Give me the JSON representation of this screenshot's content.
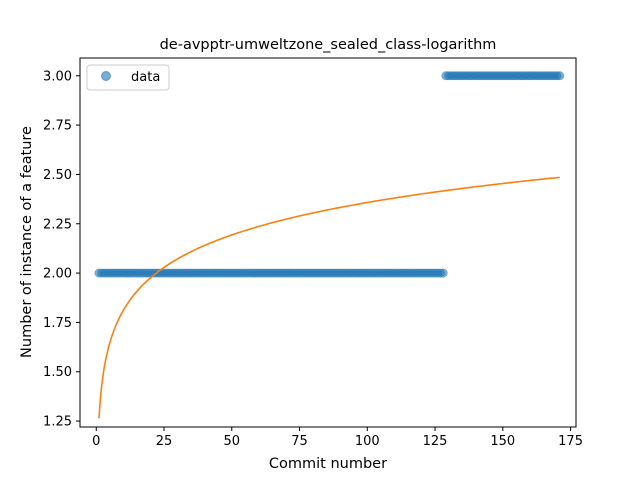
{
  "chart_data": {
    "type": "scatter",
    "title": "de-avpptr-umweltzone_sealed_class-logarithm",
    "xlabel": "Commit number",
    "ylabel": "Number of instance of a feature",
    "xlim": [
      -6,
      177
    ],
    "ylim": [
      1.22,
      3.09
    ],
    "x_ticks": [
      0,
      25,
      50,
      75,
      100,
      125,
      150,
      175
    ],
    "x_tick_labels": [
      "0",
      "25",
      "50",
      "75",
      "100",
      "125",
      "150",
      "175"
    ],
    "y_ticks": [
      1.25,
      1.5,
      1.75,
      2.0,
      2.25,
      2.5,
      2.75,
      3.0
    ],
    "y_tick_labels": [
      "1.25",
      "1.50",
      "1.75",
      "2.00",
      "2.25",
      "2.50",
      "2.75",
      "3.00"
    ],
    "grid": false,
    "legend": {
      "position": "top-left",
      "entries": [
        "data"
      ]
    },
    "series": [
      {
        "name": "data",
        "kind": "scatter",
        "color": "#1f77b4",
        "segments": [
          {
            "x_start": 1,
            "x_end": 128,
            "y": 2.0
          },
          {
            "x_start": 129,
            "x_end": 171,
            "y": 3.0
          }
        ]
      },
      {
        "kind": "line",
        "color": "#ff7f0e",
        "model": "logarithmic",
        "intercept": 1.265,
        "slope": 0.2373,
        "x_start": 1,
        "x_end": 171
      }
    ]
  }
}
